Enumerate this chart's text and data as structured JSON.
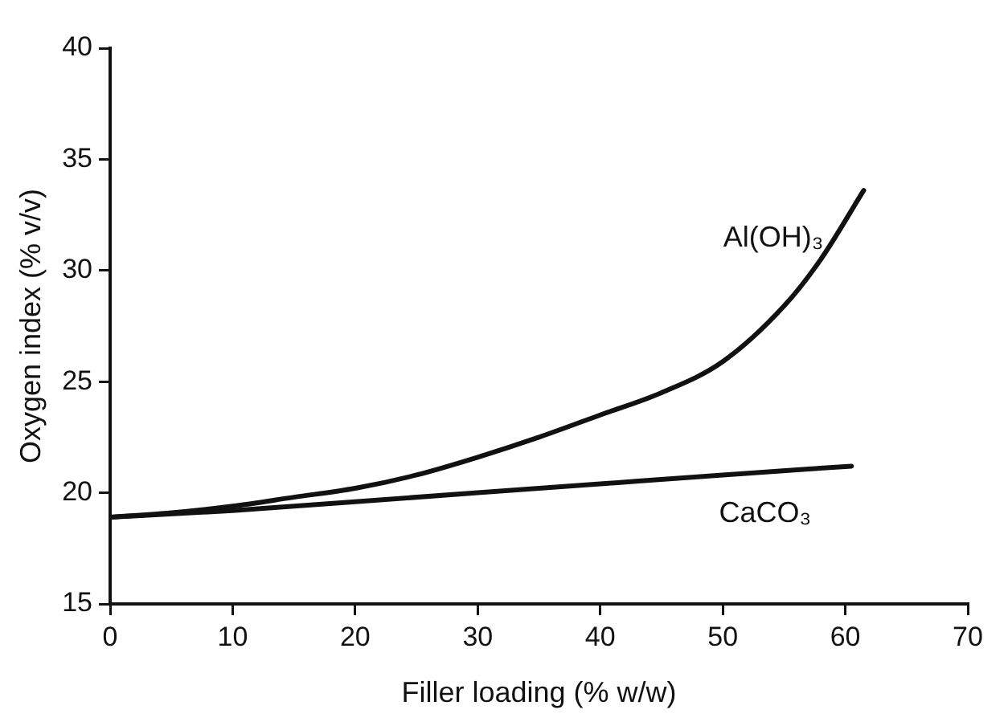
{
  "chart_data": {
    "type": "line",
    "xlabel": "Filler loading (% w/w)",
    "ylabel": "Oxygen index (% v/v)",
    "xlim": [
      0,
      70
    ],
    "xticks": [
      0,
      10,
      20,
      30,
      40,
      50,
      60,
      70
    ],
    "ylim": [
      15,
      40
    ],
    "yticks": [
      15,
      20,
      25,
      30,
      35,
      40
    ],
    "grid": false,
    "legend": false,
    "marker": "none",
    "line_style": "solid",
    "series": [
      {
        "name": "Al(OH)₃",
        "color": "#111111",
        "x": [
          0,
          5,
          10,
          15,
          20,
          25,
          30,
          35,
          40,
          45,
          50,
          55,
          58,
          61.5
        ],
        "values": [
          18.9,
          19.1,
          19.4,
          19.8,
          20.2,
          20.8,
          21.6,
          22.5,
          23.5,
          24.5,
          25.9,
          28.4,
          30.5,
          33.6
        ]
      },
      {
        "name": "CaCO₃",
        "color": "#111111",
        "x": [
          0,
          10,
          20,
          30,
          40,
          50,
          60.5
        ],
        "values": [
          18.9,
          19.2,
          19.6,
          20.0,
          20.4,
          20.8,
          21.2
        ]
      }
    ]
  }
}
